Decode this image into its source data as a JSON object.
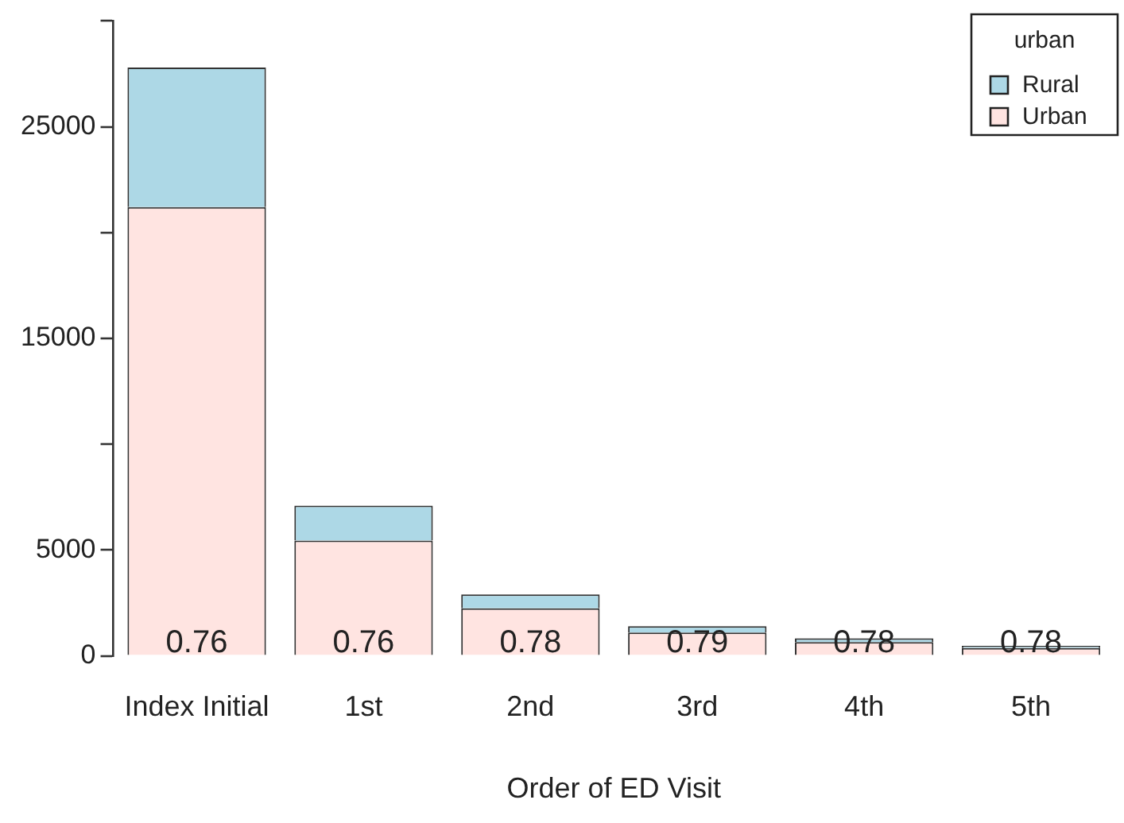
{
  "chart_data": {
    "type": "bar",
    "xlabel": "Order of ED Visit",
    "legend_title": "urban",
    "categories": [
      "Index Initial",
      "1st",
      "2nd",
      "3rd",
      "4th",
      "5th"
    ],
    "stacked": true,
    "series": [
      {
        "name": "Urban",
        "color": "#ffe4e1",
        "values": [
          21200,
          5450,
          2250,
          1100,
          650,
          370
        ]
      },
      {
        "name": "Rural",
        "color": "#add8e6",
        "values": [
          6600,
          1650,
          650,
          300,
          180,
          100
        ]
      }
    ],
    "ylim": [
      0,
      30000
    ],
    "yticks": [
      0,
      5000,
      {
        "value": 10000,
        "label": null
      },
      15000,
      {
        "value": 20000,
        "label": null
      },
      25000,
      {
        "value": 30000,
        "label": null
      }
    ],
    "grid": false,
    "legend": "top right",
    "annotations": [
      {
        "text": "0.76",
        "x": "Index Initial",
        "y": 0
      },
      {
        "text": "0.76",
        "x": "1st",
        "y": 0
      },
      {
        "text": "0.78",
        "x": "2nd",
        "y": 0
      },
      {
        "text": "0.79",
        "x": "3rd",
        "y": 0
      },
      {
        "text": "0.78",
        "x": "4th",
        "y": 0
      },
      {
        "text": "0.78",
        "x": "5th",
        "y": 0
      }
    ]
  }
}
